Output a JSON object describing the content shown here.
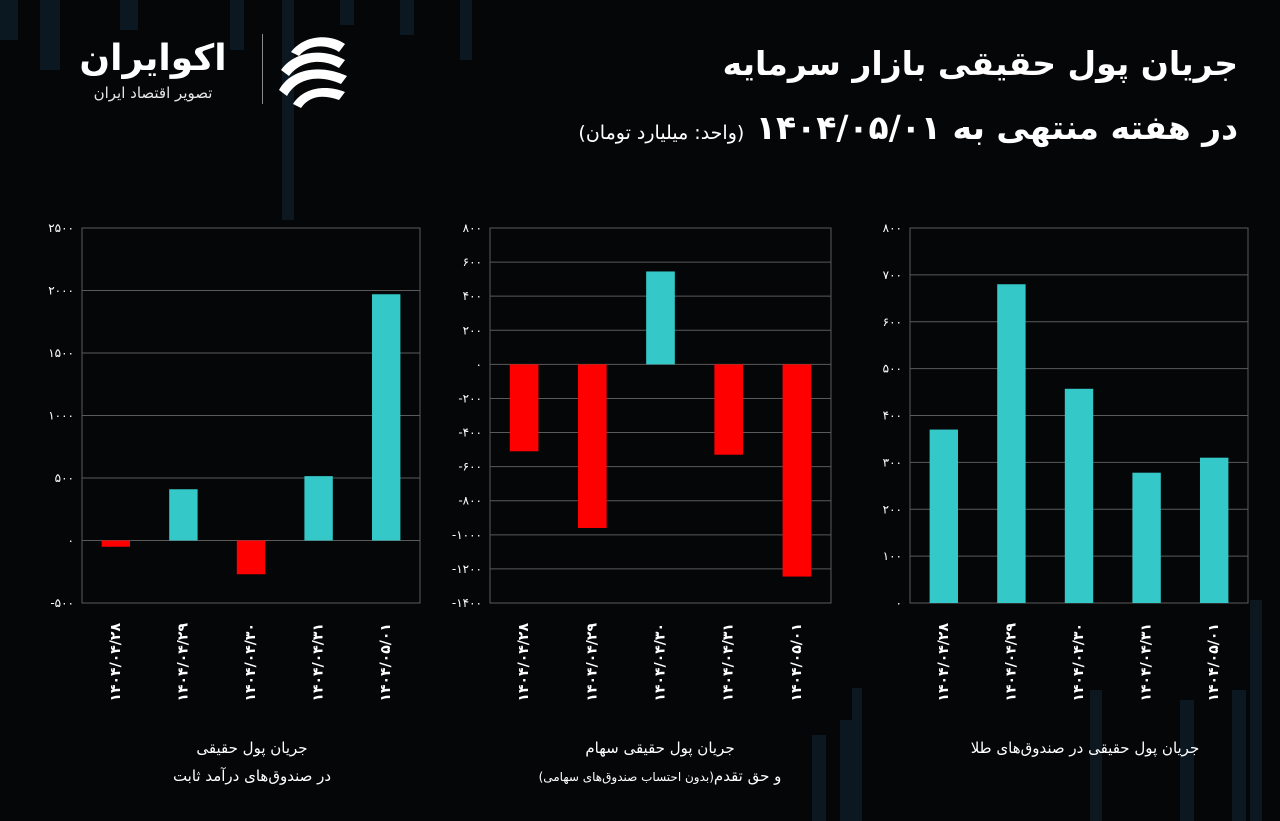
{
  "brand": {
    "name": "اکوایران",
    "tagline": "تصویر اقتصاد ایران",
    "logo_icon": "ecoiran-logo-icon"
  },
  "header": {
    "title": "جریان پول حقیقی  بازار سرمایه",
    "subtitle": "در هفته منتهی به ۱۴۰۴/۰۵/۰۱",
    "unit": "(واحد: میلیارد تومان)"
  },
  "colors": {
    "positive": "#35c8c8",
    "negative": "#ff0000",
    "background": "#050608",
    "grid": "#5a5a5a"
  },
  "chart_data": [
    {
      "type": "bar",
      "id": "fixed-income",
      "categories": [
        "۱۴۰۴/۰۴/۲۸",
        "۱۴۰۴/۰۴/۲۹",
        "۱۴۰۴/۰۴/۳۰",
        "۱۴۰۴/۰۴/۳۱",
        "۱۴۰۴/۰۵/۰۱"
      ],
      "values": [
        -50,
        410,
        -270,
        515,
        1970
      ],
      "ylim": [
        -500,
        2500
      ],
      "yticks": [
        -500,
        0,
        500,
        1000,
        1500,
        2000,
        2500
      ],
      "ytick_labels": [
        "-۵۰۰",
        "۰",
        "۵۰۰",
        "۱۰۰۰",
        "۱۵۰۰",
        "۲۰۰۰",
        "۲۵۰۰"
      ],
      "caption_line1": "جریان پول حقیقی",
      "caption_line2": "در صندوق‌های درآمد ثابت",
      "caption_line3": ""
    },
    {
      "type": "bar",
      "id": "stocks",
      "categories": [
        "۱۴۰۴/۰۴/۲۸",
        "۱۴۰۴/۰۴/۲۹",
        "۱۴۰۴/۰۴/۳۰",
        "۱۴۰۴/۰۴/۳۱",
        "۱۴۰۴/۰۵/۰۱"
      ],
      "values": [
        -510,
        -960,
        545,
        -530,
        -1245
      ],
      "ylim": [
        -1400,
        800
      ],
      "yticks": [
        -1400,
        -1200,
        -1000,
        -800,
        -600,
        -400,
        -200,
        0,
        200,
        400,
        600,
        800
      ],
      "ytick_labels": [
        "-۱۴۰۰",
        "-۱۲۰۰",
        "-۱۰۰۰",
        "-۸۰۰",
        "-۶۰۰",
        "-۴۰۰",
        "-۲۰۰",
        "۰",
        "۲۰۰",
        "۴۰۰",
        "۶۰۰",
        "۸۰۰"
      ],
      "caption_line1": "جریان پول حقیقی سهام",
      "caption_line2": "و حق تقدم",
      "caption_line3": "(بدون احتساب صندوق‌های سهامی)"
    },
    {
      "type": "bar",
      "id": "gold-funds",
      "categories": [
        "۱۴۰۴/۰۴/۲۸",
        "۱۴۰۴/۰۴/۲۹",
        "۱۴۰۴/۰۴/۳۰",
        "۱۴۰۴/۰۴/۳۱",
        "۱۴۰۴/۰۵/۰۱"
      ],
      "values": [
        370,
        680,
        457,
        278,
        310
      ],
      "ylim": [
        0,
        800
      ],
      "yticks": [
        0,
        100,
        200,
        300,
        400,
        500,
        600,
        700,
        800
      ],
      "ytick_labels": [
        "۰",
        "۱۰۰",
        "۲۰۰",
        "۳۰۰",
        "۴۰۰",
        "۵۰۰",
        "۶۰۰",
        "۷۰۰",
        "۸۰۰"
      ],
      "caption_line1": "جریان پول حقیقی در صندوق‌های طلا",
      "caption_line2": "",
      "caption_line3": ""
    }
  ]
}
